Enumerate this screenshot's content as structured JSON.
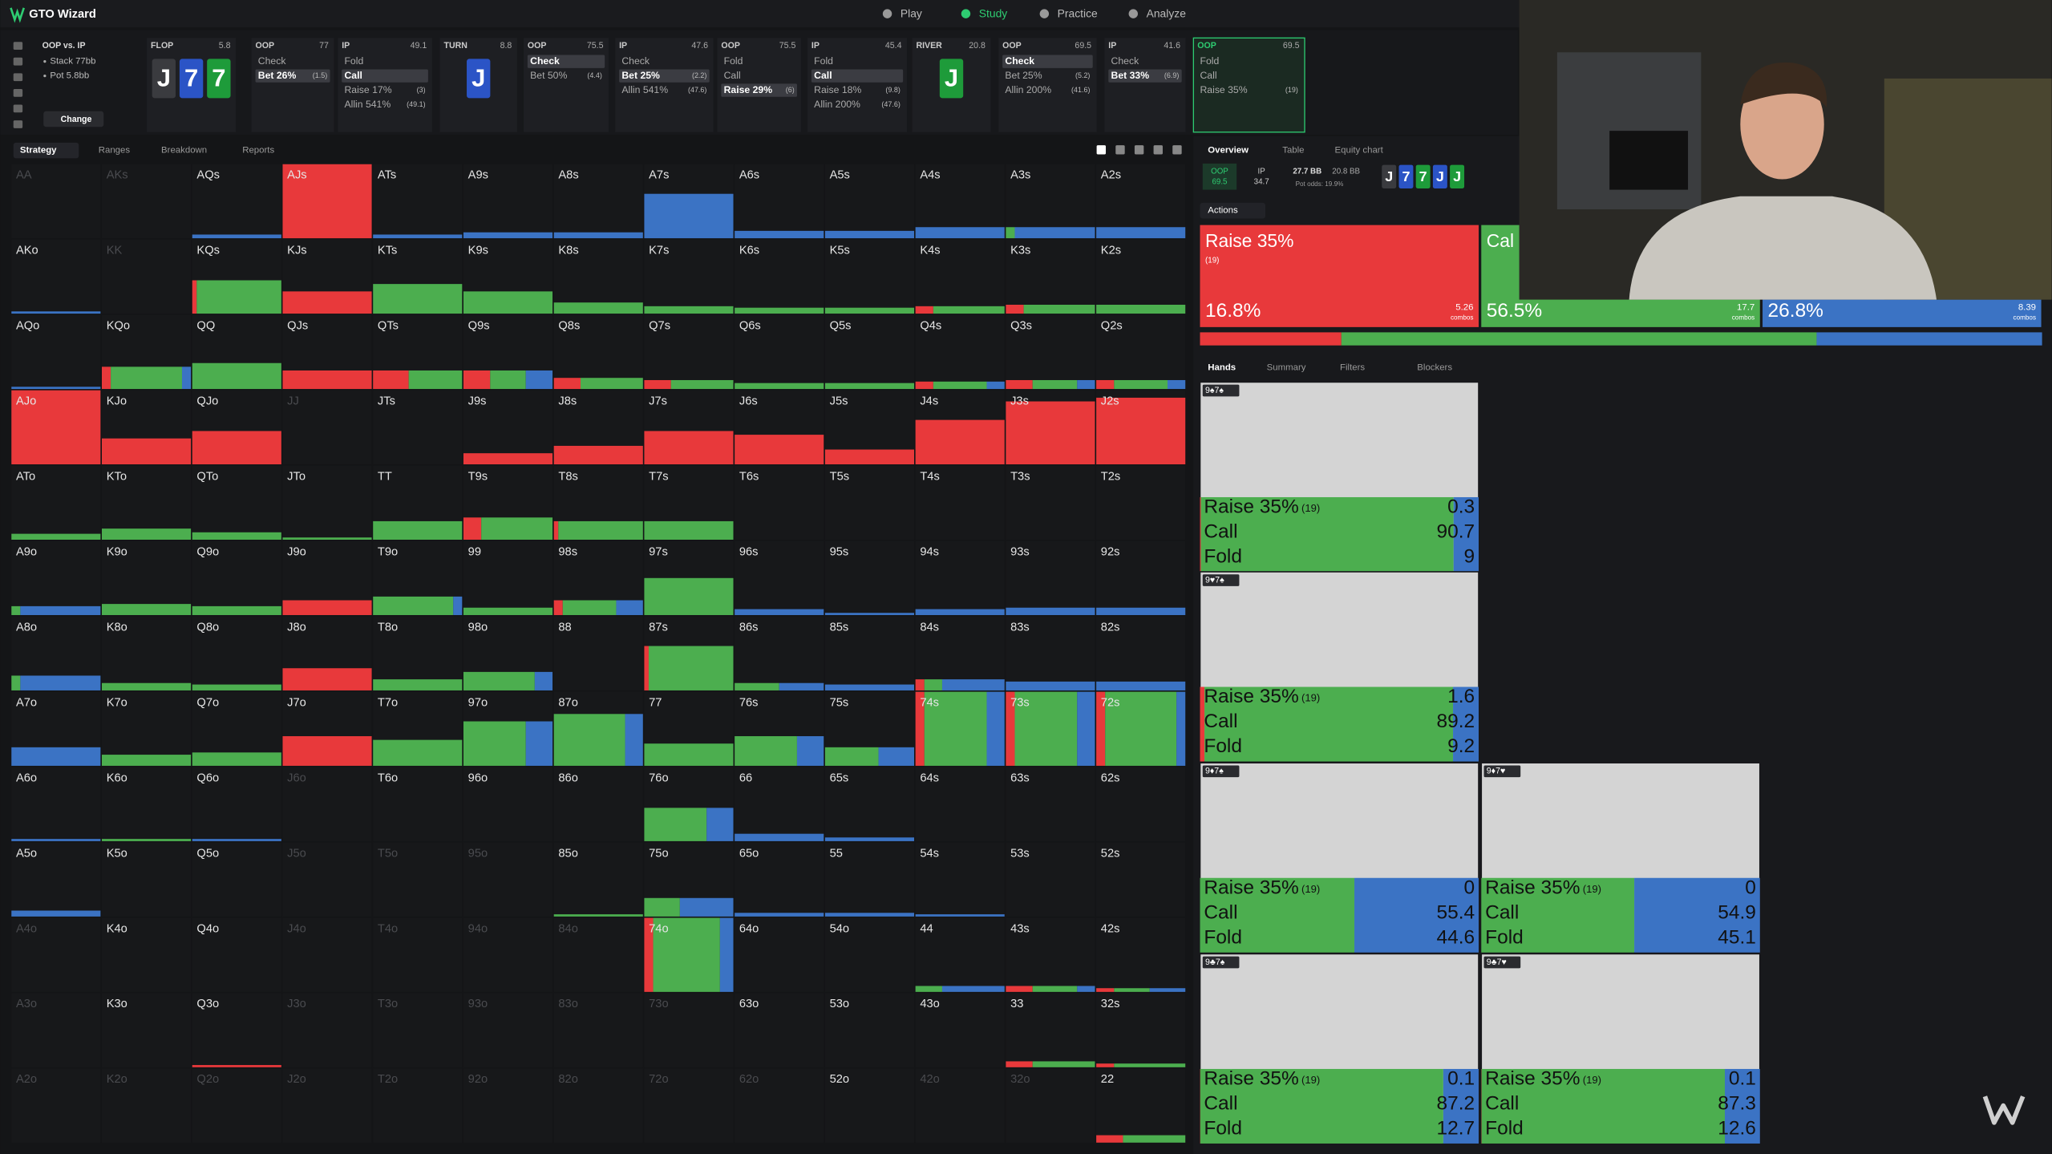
{
  "header": {
    "title": "GTO Wizard",
    "nav": [
      "Play",
      "Study",
      "Practice",
      "Analyze"
    ],
    "active": 1
  },
  "spot": {
    "matchup": "OOP vs. IP",
    "stack": "Stack 77bb",
    "pot": "Pot 5.8bb",
    "change": "Change"
  },
  "nodes": [
    {
      "label": "FLOP",
      "value": 5.8,
      "cards": [
        {
          "rank": "J",
          "color": "#3a3b3f"
        },
        {
          "rank": "7",
          "color": "#2b54c6"
        },
        {
          "rank": "7",
          "color": "#1e9b3a"
        }
      ]
    },
    {
      "label": "OOP",
      "value": 77,
      "actions": [
        "Check",
        "Bet 26%"
      ],
      "sizes": [
        null,
        "(1.5)"
      ],
      "selected": 1
    },
    {
      "label": "IP",
      "value": 49.1,
      "actions": [
        "Fold",
        "Call",
        "Raise 17%",
        "Allin 541%"
      ],
      "sizes": [
        null,
        null,
        "(3)",
        "(49.1)"
      ],
      "selected": 1
    },
    {
      "label": "TURN",
      "value": 8.8,
      "cards": [
        {
          "rank": "J",
          "color": "#2b54c6"
        }
      ]
    },
    {
      "label": "OOP",
      "value": 75.5,
      "actions": [
        "Check",
        "Bet 50%"
      ],
      "sizes": [
        null,
        "(4.4)"
      ],
      "selected": 0
    },
    {
      "label": "IP",
      "value": 47.6,
      "actions": [
        "Check",
        "Bet 25%",
        "Allin 541%"
      ],
      "sizes": [
        null,
        "(2.2)",
        "(47.6)"
      ],
      "selected": 1
    },
    {
      "label": "OOP",
      "value": 75.5,
      "actions": [
        "Fold",
        "Call",
        "Raise 29%"
      ],
      "sizes": [
        null,
        null,
        "(6)"
      ],
      "selected": 2
    },
    {
      "label": "IP",
      "value": 45.4,
      "actions": [
        "Fold",
        "Call",
        "Raise 18%",
        "Allin 200%"
      ],
      "sizes": [
        null,
        null,
        "(9.8)",
        "(47.6)"
      ],
      "selected": 1
    },
    {
      "label": "RIVER",
      "value": 20.8,
      "cards": [
        {
          "rank": "J",
          "color": "#1e9b3a"
        }
      ]
    },
    {
      "label": "OOP",
      "value": 69.5,
      "actions": [
        "Check",
        "Bet 25%",
        "Allin 200%"
      ],
      "sizes": [
        null,
        "(5.2)",
        "(41.6)"
      ],
      "selected": 0
    },
    {
      "label": "IP",
      "value": 41.6,
      "actions": [
        "Check",
        "Bet 33%"
      ],
      "sizes": [
        null,
        "(6.9)"
      ],
      "selected": 1
    },
    {
      "label": "OOP",
      "value": 69.5,
      "actions": [
        "Fold",
        "Call",
        "Raise 35%"
      ],
      "sizes": [
        null,
        null,
        "(19)"
      ],
      "active": true
    }
  ],
  "strategy_tabs": [
    "Strategy",
    "Ranges",
    "Breakdown",
    "Reports"
  ],
  "matrix": {
    "colors": [
      "#e8393b",
      "#4cae4f",
      "#3b73c4"
    ],
    "hands": [
      [
        "AA",
        "AKs",
        "AQs",
        "AJs",
        "ATs",
        "A9s",
        "A8s",
        "A7s",
        "A6s",
        "A5s",
        "A4s",
        "A3s",
        "A2s"
      ],
      [
        "AKo",
        "KK",
        "KQs",
        "KJs",
        "KTs",
        "K9s",
        "K8s",
        "K7s",
        "K6s",
        "K5s",
        "K4s",
        "K3s",
        "K2s"
      ],
      [
        "AQo",
        "KQo",
        "QQ",
        "QJs",
        "QTs",
        "Q9s",
        "Q8s",
        "Q7s",
        "Q6s",
        "Q5s",
        "Q4s",
        "Q3s",
        "Q2s"
      ],
      [
        "AJo",
        "KJo",
        "QJo",
        "JJ",
        "JTs",
        "J9s",
        "J8s",
        "J7s",
        "J6s",
        "J5s",
        "J4s",
        "J3s",
        "J2s"
      ],
      [
        "ATo",
        "KTo",
        "QTo",
        "JTo",
        "TT",
        "T9s",
        "T8s",
        "T7s",
        "T6s",
        "T5s",
        "T4s",
        "T3s",
        "T2s"
      ],
      [
        "A9o",
        "K9o",
        "Q9o",
        "J9o",
        "T9o",
        "99",
        "98s",
        "97s",
        "96s",
        "95s",
        "94s",
        "93s",
        "92s"
      ],
      [
        "A8o",
        "K8o",
        "Q8o",
        "J8o",
        "T8o",
        "98o",
        "88",
        "87s",
        "86s",
        "85s",
        "84s",
        "83s",
        "82s"
      ],
      [
        "A7o",
        "K7o",
        "Q7o",
        "J7o",
        "T7o",
        "97o",
        "87o",
        "77",
        "76s",
        "75s",
        "74s",
        "73s",
        "72s"
      ],
      [
        "A6o",
        "K6o",
        "Q6o",
        "J6o",
        "T6o",
        "96o",
        "86o",
        "76o",
        "66",
        "65s",
        "64s",
        "63s",
        "62s"
      ],
      [
        "A5o",
        "K5o",
        "Q5o",
        "J5o",
        "T5o",
        "95o",
        "85o",
        "75o",
        "65o",
        "55",
        "54s",
        "53s",
        "52s"
      ],
      [
        "A4o",
        "K4o",
        "Q4o",
        "J4o",
        "T4o",
        "94o",
        "84o",
        "74o",
        "64o",
        "54o",
        "44",
        "43s",
        "42s"
      ],
      [
        "A3o",
        "K3o",
        "Q3o",
        "J3o",
        "T3o",
        "93o",
        "83o",
        "73o",
        "63o",
        "53o",
        "43o",
        "33",
        "32s"
      ],
      [
        "A2o",
        "K2o",
        "Q2o",
        "J2o",
        "T2o",
        "92o",
        "82o",
        "72o",
        "62o",
        "52o",
        "42o",
        "32o",
        "22"
      ]
    ],
    "mix": [
      [
        null,
        null,
        [
          5,
          0,
          0,
          100
        ],
        [
          100,
          100,
          0,
          0
        ],
        [
          5,
          0,
          0,
          100
        ],
        [
          8,
          0,
          0,
          100
        ],
        [
          8,
          0,
          0,
          100
        ],
        [
          60,
          0,
          0,
          100
        ],
        [
          10,
          0,
          0,
          100
        ],
        [
          10,
          0,
          0,
          100
        ],
        [
          15,
          0,
          0,
          100
        ],
        [
          15,
          0,
          10,
          90
        ],
        [
          15,
          0,
          0,
          100
        ]
      ],
      [
        [
          3,
          0,
          0,
          100
        ],
        null,
        [
          45,
          5,
          95,
          0
        ],
        [
          30,
          100,
          0,
          0
        ],
        [
          40,
          0,
          100,
          0
        ],
        [
          30,
          0,
          100,
          0
        ],
        [
          15,
          0,
          100,
          0
        ],
        [
          10,
          0,
          100,
          0
        ],
        [
          8,
          0,
          100,
          0
        ],
        [
          8,
          0,
          100,
          0
        ],
        [
          10,
          20,
          80,
          0
        ],
        [
          12,
          20,
          80,
          0
        ],
        [
          12,
          0,
          100,
          0
        ]
      ],
      [
        [
          3,
          0,
          0,
          100
        ],
        [
          30,
          10,
          80,
          10
        ],
        [
          35,
          0,
          100,
          0
        ],
        [
          25,
          100,
          0,
          0
        ],
        [
          25,
          40,
          60,
          0
        ],
        [
          25,
          30,
          40,
          30
        ],
        [
          15,
          30,
          70,
          0
        ],
        [
          12,
          30,
          70,
          0
        ],
        [
          8,
          0,
          100,
          0
        ],
        [
          8,
          0,
          100,
          0
        ],
        [
          10,
          20,
          60,
          20
        ],
        [
          12,
          30,
          50,
          20
        ],
        [
          12,
          20,
          60,
          20
        ]
      ],
      [
        [
          100,
          100,
          0,
          0
        ],
        [
          35,
          100,
          0,
          0
        ],
        [
          45,
          100,
          0,
          0
        ],
        null,
        null,
        [
          15,
          100,
          0,
          0
        ],
        [
          25,
          100,
          0,
          0
        ],
        [
          45,
          100,
          0,
          0
        ],
        [
          40,
          100,
          0,
          0
        ],
        [
          20,
          100,
          0,
          0
        ],
        [
          60,
          100,
          0,
          0
        ],
        [
          85,
          100,
          0,
          0
        ],
        [
          90,
          100,
          0,
          0
        ]
      ],
      [
        [
          8,
          0,
          100,
          0
        ],
        [
          15,
          0,
          100,
          0
        ],
        [
          10,
          0,
          100,
          0
        ],
        [
          3,
          0,
          100,
          0
        ],
        [
          25,
          0,
          100,
          0
        ],
        [
          30,
          20,
          80,
          0
        ],
        [
          25,
          5,
          95,
          0
        ],
        [
          25,
          0,
          100,
          0
        ],
        null,
        null,
        null,
        null,
        null
      ],
      [
        [
          12,
          0,
          10,
          90
        ],
        [
          15,
          0,
          100,
          0
        ],
        [
          12,
          0,
          100,
          0
        ],
        [
          20,
          100,
          0,
          0
        ],
        [
          25,
          0,
          90,
          10
        ],
        [
          10,
          0,
          100,
          0
        ],
        [
          20,
          10,
          60,
          30
        ],
        [
          50,
          0,
          100,
          0
        ],
        [
          8,
          0,
          0,
          100
        ],
        [
          3,
          0,
          0,
          100
        ],
        [
          8,
          0,
          0,
          100
        ],
        [
          10,
          0,
          0,
          100
        ],
        [
          10,
          0,
          0,
          100
        ]
      ],
      [
        [
          20,
          0,
          10,
          90
        ],
        [
          10,
          0,
          100,
          0
        ],
        [
          8,
          0,
          100,
          0
        ],
        [
          30,
          100,
          0,
          0
        ],
        [
          15,
          0,
          100,
          0
        ],
        [
          25,
          0,
          80,
          20
        ],
        null,
        [
          60,
          5,
          95,
          0
        ],
        [
          10,
          0,
          50,
          50
        ],
        [
          8,
          0,
          0,
          100
        ],
        [
          15,
          10,
          20,
          70
        ],
        [
          12,
          0,
          0,
          100
        ],
        [
          12,
          0,
          0,
          100
        ]
      ],
      [
        [
          25,
          0,
          0,
          100
        ],
        [
          15,
          0,
          100,
          0
        ],
        [
          18,
          0,
          100,
          0
        ],
        [
          40,
          100,
          0,
          0
        ],
        [
          35,
          0,
          100,
          0
        ],
        [
          60,
          0,
          70,
          30
        ],
        [
          70,
          0,
          80,
          20
        ],
        [
          30,
          0,
          100,
          0
        ],
        [
          40,
          0,
          70,
          30
        ],
        [
          25,
          0,
          60,
          40
        ],
        [
          100,
          10,
          70,
          20
        ],
        [
          100,
          10,
          70,
          20
        ],
        [
          100,
          10,
          80,
          10
        ]
      ],
      [
        [
          3,
          0,
          0,
          100
        ],
        [
          3,
          0,
          100,
          0
        ],
        [
          3,
          0,
          0,
          100
        ],
        null,
        null,
        null,
        null,
        [
          45,
          0,
          70,
          30
        ],
        [
          10,
          0,
          0,
          100
        ],
        [
          5,
          0,
          0,
          100
        ],
        null,
        null,
        null
      ],
      [
        [
          8,
          0,
          0,
          100
        ],
        null,
        null,
        null,
        null,
        null,
        [
          3,
          0,
          100,
          0
        ],
        [
          25,
          0,
          40,
          60
        ],
        [
          5,
          0,
          0,
          100
        ],
        [
          5,
          0,
          0,
          100
        ],
        [
          3,
          0,
          0,
          100
        ],
        null,
        null
      ],
      [
        null,
        null,
        null,
        null,
        null,
        null,
        null,
        [
          100,
          10,
          75,
          15
        ],
        null,
        null,
        [
          8,
          0,
          30,
          70
        ],
        [
          8,
          30,
          50,
          20
        ],
        [
          5,
          20,
          40,
          40
        ]
      ],
      [
        null,
        null,
        [
          3,
          100,
          0,
          0
        ],
        null,
        null,
        null,
        null,
        null,
        null,
        null,
        null,
        [
          8,
          30,
          70,
          0
        ],
        [
          5,
          20,
          80,
          0
        ]
      ],
      [
        null,
        null,
        null,
        null,
        null,
        null,
        null,
        null,
        null,
        null,
        null,
        null,
        [
          10,
          30,
          70,
          0
        ]
      ]
    ],
    "dimmed": [
      [
        0,
        0
      ],
      [
        0,
        1
      ],
      [
        1,
        1
      ],
      [
        3,
        3
      ],
      [
        8,
        3
      ],
      [
        9,
        3
      ],
      [
        9,
        4
      ],
      [
        9,
        5
      ],
      [
        10,
        0
      ],
      [
        10,
        3
      ],
      [
        10,
        4
      ],
      [
        10,
        5
      ],
      [
        10,
        6
      ],
      [
        11,
        0
      ],
      [
        11,
        3
      ],
      [
        11,
        4
      ],
      [
        11,
        5
      ],
      [
        11,
        6
      ],
      [
        11,
        7
      ],
      [
        12,
        0
      ],
      [
        12,
        1
      ],
      [
        12,
        2
      ],
      [
        12,
        3
      ],
      [
        12,
        4
      ],
      [
        12,
        5
      ],
      [
        12,
        6
      ],
      [
        12,
        7
      ],
      [
        12,
        8
      ],
      [
        12,
        10
      ],
      [
        12,
        11
      ]
    ]
  },
  "overview": {
    "tabs": [
      "Overview",
      "Table",
      "Equity chart"
    ],
    "oop": {
      "label": "OOP",
      "value": 69.5
    },
    "ip": {
      "label": "IP",
      "value": 34.7
    },
    "stack_oop": "27.7 BB",
    "stack_ip": "20.8 BB",
    "pot_odds": "Pot odds: 19.9%",
    "board": [
      {
        "rank": "J",
        "color": "#3a3b3f"
      },
      {
        "rank": "7",
        "color": "#2b54c6"
      },
      {
        "rank": "7",
        "color": "#1e9b3a"
      },
      {
        "rank": "J",
        "color": "#2b54c6"
      },
      {
        "rank": "J",
        "color": "#1e9b3a"
      }
    ],
    "actions_button": "Actions",
    "combos_label": "combos",
    "summary": [
      {
        "name": "Raise 35%",
        "size": "(19)",
        "value": 16.8,
        "value_label": "16.8%",
        "combos": 5.26,
        "color": "#e8393b"
      },
      {
        "name": "Cal",
        "value": 56.5,
        "value_label": "56.5%",
        "combos": 17.7,
        "color": "#4cae4f"
      },
      {
        "value": 26.8,
        "value_label": "26.8%",
        "combos": 8.39,
        "color": "#3b73c4"
      }
    ]
  },
  "details": {
    "tabs": [
      "Hands",
      "Summary",
      "Filters",
      "Blockers"
    ],
    "actions": [
      "Raise 35%",
      "Call",
      "Fold"
    ],
    "size": "(19)",
    "hands": [
      {
        "cards": "9♠7♠",
        "values": [
          0.3,
          90.7,
          9
        ]
      },
      {
        "cards": "9♥7♠",
        "values": [
          1.6,
          89.2,
          9.2
        ]
      },
      {
        "cards": "9♦7♠",
        "values": [
          0,
          55.4,
          44.6
        ]
      },
      {
        "cards": "9♦7♥",
        "values": [
          0,
          54.9,
          45.1
        ]
      },
      {
        "cards": "9♣7♠",
        "values": [
          0.1,
          87.2,
          12.7
        ]
      },
      {
        "cards": "9♣7♥",
        "values": [
          0.1,
          87.3,
          12.6
        ]
      }
    ]
  }
}
